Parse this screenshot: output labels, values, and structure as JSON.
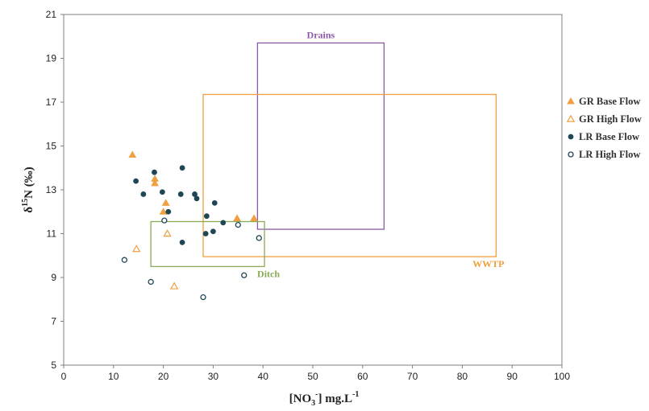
{
  "chart_data": {
    "type": "scatter",
    "xlabel_main": "[NO",
    "xlabel_sub": "3",
    "xlabel_sup1": "-",
    "xlabel_tail": "] mg.L",
    "xlabel_sup2": "-1",
    "ylabel_pre": "δ",
    "ylabel_sup": "15",
    "ylabel_tail": "N (‰)",
    "xlim": [
      0,
      100
    ],
    "ylim": [
      5,
      21
    ],
    "xticks": [
      0,
      10,
      20,
      30,
      40,
      50,
      60,
      70,
      80,
      90,
      100
    ],
    "yticks": [
      5,
      7,
      9,
      11,
      13,
      15,
      17,
      19,
      21
    ],
    "grid": false,
    "legend_position": "right",
    "series": [
      {
        "name": "GR Base Flow",
        "marker": "filled-triangle",
        "color": "#f0a040",
        "points": [
          [
            13.8,
            14.6
          ],
          [
            18.3,
            13.5
          ],
          [
            18.3,
            13.3
          ],
          [
            20.5,
            12.4
          ],
          [
            20.0,
            12.0
          ],
          [
            34.8,
            11.7
          ],
          [
            38.2,
            11.7
          ]
        ]
      },
      {
        "name": "GR High Flow",
        "marker": "open-triangle",
        "color": "#f0a040",
        "points": [
          [
            14.6,
            10.3
          ],
          [
            20.8,
            11.0
          ],
          [
            22.2,
            8.6
          ]
        ]
      },
      {
        "name": "LR Base Flow",
        "marker": "filled-circle",
        "color": "#1f4657",
        "points": [
          [
            18.2,
            13.8
          ],
          [
            14.5,
            13.4
          ],
          [
            23.8,
            14.0
          ],
          [
            19.8,
            12.9
          ],
          [
            16.0,
            12.8
          ],
          [
            23.5,
            12.8
          ],
          [
            26.3,
            12.8
          ],
          [
            26.7,
            12.6
          ],
          [
            21.0,
            12.0
          ],
          [
            30.3,
            12.4
          ],
          [
            28.7,
            11.8
          ],
          [
            32.0,
            11.5
          ],
          [
            28.5,
            11.0
          ],
          [
            30.0,
            11.1
          ],
          [
            23.8,
            10.6
          ]
        ]
      },
      {
        "name": "LR High Flow",
        "marker": "open-circle",
        "color": "#1f4657",
        "points": [
          [
            20.2,
            11.6
          ],
          [
            35.0,
            11.4
          ],
          [
            39.2,
            10.8
          ],
          [
            12.2,
            9.8
          ],
          [
            17.5,
            8.8
          ],
          [
            36.2,
            9.1
          ],
          [
            28.0,
            8.1
          ]
        ]
      }
    ],
    "regions": [
      {
        "label": "Drains",
        "x": [
          38.9,
          64.3
        ],
        "y": [
          11.2,
          19.7
        ],
        "color": "#8b5aa6",
        "label_at": "top"
      },
      {
        "label": "WWTP",
        "x": [
          28.0,
          86.8
        ],
        "y": [
          9.95,
          17.35
        ],
        "color": "#f0a040",
        "label_at": "bottom-right"
      },
      {
        "label": "Ditch",
        "x": [
          17.5,
          40.3
        ],
        "y": [
          9.5,
          11.55
        ],
        "color": "#8aaa55",
        "label_at": "bottom-right"
      }
    ]
  }
}
